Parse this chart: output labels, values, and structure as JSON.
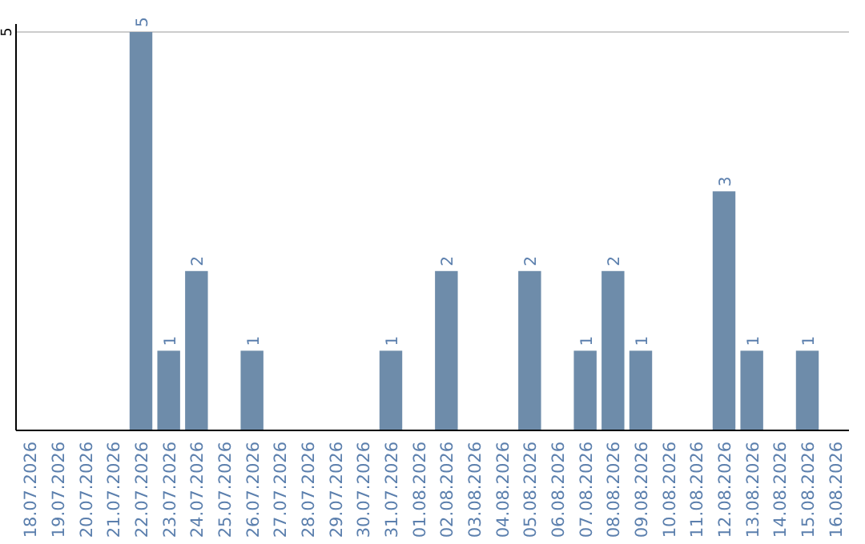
{
  "chart_data": {
    "type": "bar",
    "categories": [
      "18.07.2026",
      "19.07.2026",
      "20.07.2026",
      "21.07.2026",
      "22.07.2026",
      "23.07.2026",
      "24.07.2026",
      "25.07.2026",
      "26.07.2026",
      "27.07.2026",
      "28.07.2026",
      "29.07.2026",
      "30.07.2026",
      "31.07.2026",
      "01.08.2026",
      "02.08.2026",
      "03.08.2026",
      "04.08.2026",
      "05.08.2026",
      "06.08.2026",
      "07.08.2026",
      "08.08.2026",
      "09.08.2026",
      "10.08.2026",
      "11.08.2026",
      "12.08.2026",
      "13.08.2026",
      "14.08.2026",
      "15.08.2026",
      "16.08.2026"
    ],
    "values": [
      0,
      0,
      0,
      0,
      5,
      1,
      2,
      0,
      1,
      0,
      0,
      0,
      0,
      1,
      0,
      2,
      0,
      0,
      2,
      0,
      1,
      2,
      1,
      0,
      0,
      3,
      1,
      0,
      1,
      0
    ],
    "value_labels": [
      null,
      null,
      null,
      null,
      "5",
      "1",
      "2",
      null,
      "1",
      null,
      null,
      null,
      null,
      "1",
      null,
      "2",
      null,
      null,
      "2",
      null,
      "1",
      "2",
      "1",
      null,
      null,
      "3",
      "1",
      null,
      "1",
      null
    ],
    "color": "#6e8caa",
    "ylim": [
      0,
      5
    ],
    "yticks": [
      5
    ],
    "ref_lines": [
      {
        "axis": "y",
        "value": 5,
        "color": "#cccccc"
      }
    ]
  }
}
